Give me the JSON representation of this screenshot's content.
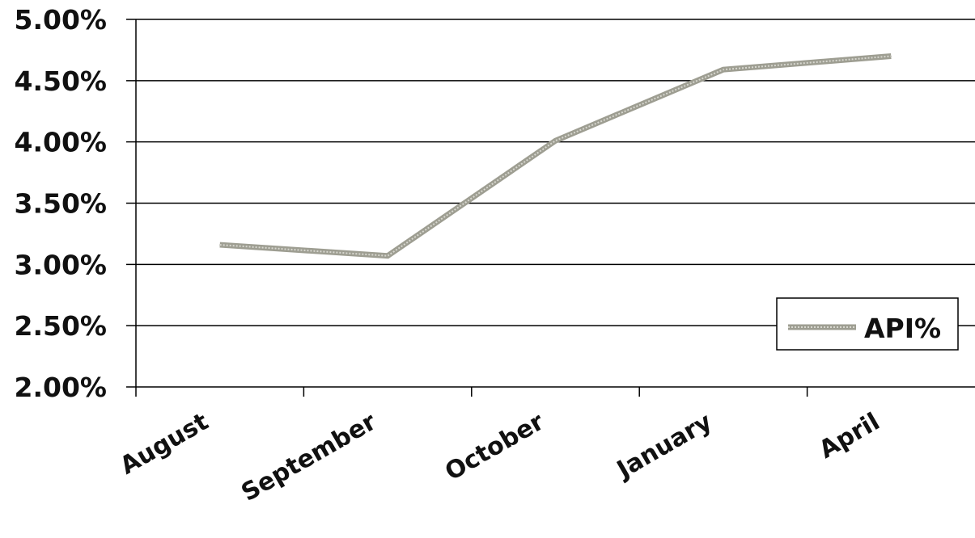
{
  "chart_data": {
    "type": "line",
    "categories": [
      "August",
      "September",
      "October",
      "January",
      "April"
    ],
    "series": [
      {
        "name": "API%",
        "values": [
          3.16,
          3.07,
          4.01,
          4.59,
          4.7
        ],
        "color": "#9e9e92"
      }
    ],
    "y_tick_labels": [
      "2.00%",
      "2.50%",
      "3.00%",
      "3.50%",
      "4.00%",
      "4.50%",
      "5.00%"
    ],
    "y_tick_values": [
      2.0,
      2.5,
      3.0,
      3.5,
      4.0,
      4.5,
      5.0
    ],
    "ylim": [
      2.0,
      5.0
    ],
    "grid": true,
    "legend_position": "right"
  }
}
